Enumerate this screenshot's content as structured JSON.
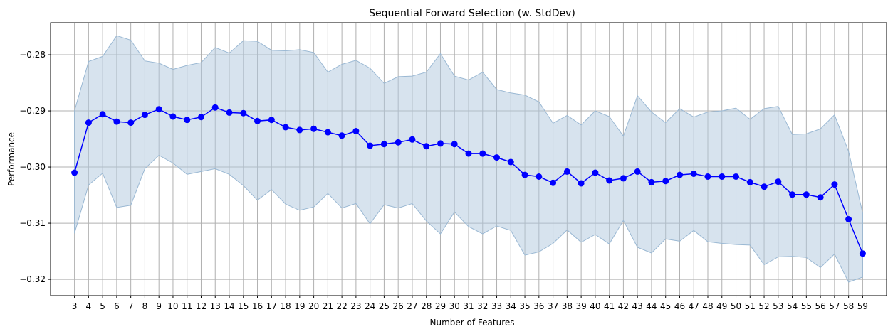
{
  "chart_data": {
    "type": "line",
    "title": "Sequential Forward Selection (w. StdDev)",
    "xlabel": "Number of Features",
    "ylabel": "Performance",
    "x": [
      3,
      4,
      5,
      6,
      7,
      8,
      9,
      10,
      11,
      12,
      13,
      14,
      15,
      16,
      17,
      18,
      19,
      20,
      21,
      22,
      23,
      24,
      25,
      26,
      27,
      28,
      29,
      30,
      31,
      32,
      33,
      34,
      35,
      36,
      37,
      38,
      39,
      40,
      41,
      42,
      43,
      44,
      45,
      46,
      47,
      48,
      49,
      50,
      51,
      52,
      53,
      54,
      55,
      56,
      57,
      58,
      59
    ],
    "yticks": [
      "-0.28",
      "-0.29",
      "-0.30",
      "-0.31",
      "-0.32"
    ],
    "ytick_values": [
      -0.28,
      -0.29,
      -0.3,
      -0.31,
      -0.32
    ],
    "xlim": [
      1.3,
      60.7
    ],
    "ylim": [
      -0.3229,
      -0.2743
    ],
    "grid": true,
    "series": [
      {
        "values": [
          -0.301,
          -0.2921,
          -0.2906,
          -0.2919,
          -0.2921,
          -0.2907,
          -0.2897,
          -0.291,
          -0.2916,
          -0.2911,
          -0.2894,
          -0.2903,
          -0.2904,
          -0.2918,
          -0.2916,
          -0.2929,
          -0.2934,
          -0.2932,
          -0.2938,
          -0.2944,
          -0.2936,
          -0.2962,
          -0.2959,
          -0.2956,
          -0.2951,
          -0.2963,
          -0.2958,
          -0.2959,
          -0.2976,
          -0.2976,
          -0.2983,
          -0.2991,
          -0.3014,
          -0.3017,
          -0.3028,
          -0.3008,
          -0.3029,
          -0.301,
          -0.3024,
          -0.302,
          -0.3008,
          -0.3027,
          -0.3025,
          -0.3014,
          -0.3012,
          -0.3017,
          -0.3017,
          -0.3017,
          -0.3027,
          -0.3035,
          -0.3026,
          -0.3049,
          -0.3049,
          -0.3054,
          -0.3031,
          -0.3093,
          -0.3154
        ],
        "upper": [
          -0.29,
          -0.2812,
          -0.2803,
          -0.2766,
          -0.2774,
          -0.2811,
          -0.2815,
          -0.2826,
          -0.2819,
          -0.2814,
          -0.2787,
          -0.2797,
          -0.2775,
          -0.2776,
          -0.2792,
          -0.2793,
          -0.2791,
          -0.2796,
          -0.2831,
          -0.2817,
          -0.281,
          -0.2824,
          -0.2851,
          -0.2839,
          -0.2838,
          -0.2831,
          -0.2798,
          -0.2838,
          -0.2845,
          -0.2831,
          -0.2862,
          -0.2868,
          -0.2872,
          -0.2884,
          -0.2922,
          -0.2908,
          -0.2925,
          -0.29,
          -0.291,
          -0.2945,
          -0.2873,
          -0.2902,
          -0.2921,
          -0.2896,
          -0.2911,
          -0.2902,
          -0.29,
          -0.2895,
          -0.2915,
          -0.2896,
          -0.2892,
          -0.2942,
          -0.2941,
          -0.2932,
          -0.2907,
          -0.2972,
          -0.3082
        ],
        "lower": [
          -0.3118,
          -0.3032,
          -0.3011,
          -0.3072,
          -0.3068,
          -0.3003,
          -0.2979,
          -0.2993,
          -0.3013,
          -0.3008,
          -0.3003,
          -0.3013,
          -0.3033,
          -0.3059,
          -0.304,
          -0.3066,
          -0.3077,
          -0.3071,
          -0.3047,
          -0.3073,
          -0.3065,
          -0.3101,
          -0.3067,
          -0.3073,
          -0.3065,
          -0.3096,
          -0.3119,
          -0.308,
          -0.3106,
          -0.3119,
          -0.3105,
          -0.3113,
          -0.3157,
          -0.3151,
          -0.3136,
          -0.3112,
          -0.3134,
          -0.312,
          -0.3137,
          -0.3095,
          -0.3143,
          -0.3153,
          -0.3128,
          -0.3132,
          -0.3113,
          -0.3133,
          -0.3136,
          -0.3138,
          -0.3139,
          -0.3174,
          -0.316,
          -0.3159,
          -0.3161,
          -0.3179,
          -0.3155,
          -0.3205,
          -0.3196
        ]
      }
    ],
    "colors": {
      "line": "#0000ff",
      "marker": "#0000ff",
      "band": "#b0c8de",
      "band_edge": "#9ab8d3",
      "grid": "#b0b0b0"
    }
  }
}
